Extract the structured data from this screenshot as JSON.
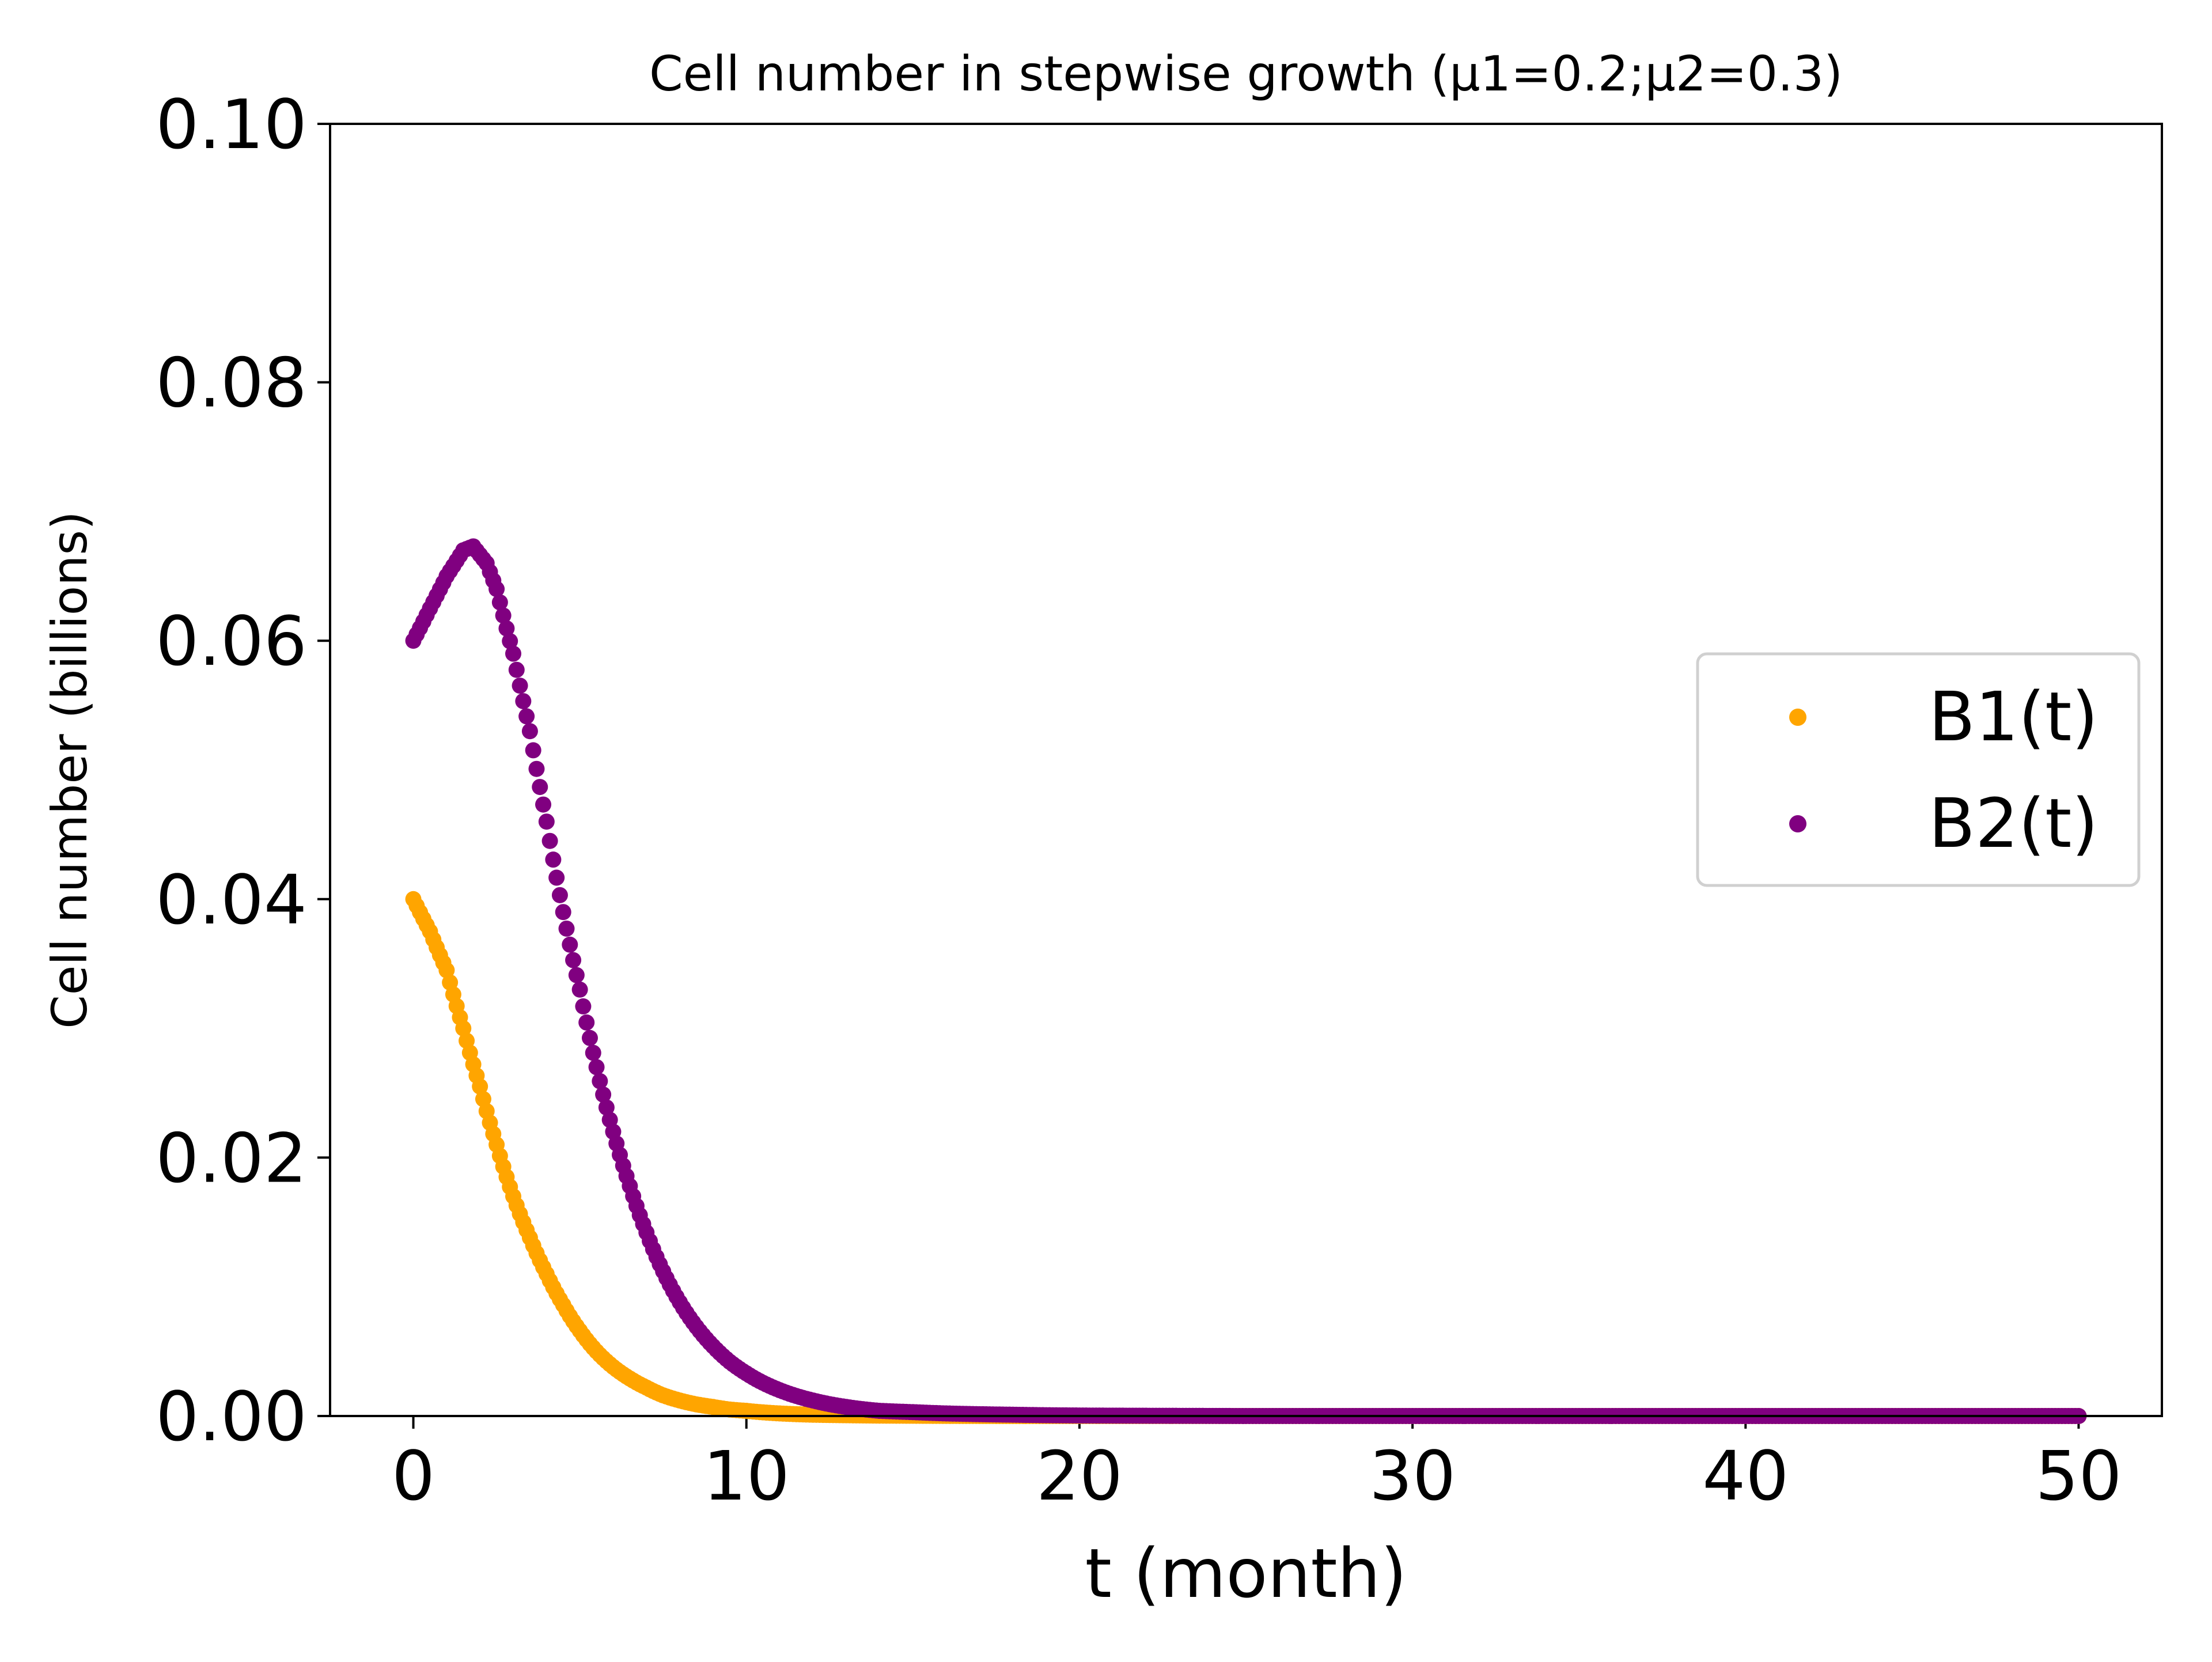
{
  "chart_data": {
    "type": "scatter",
    "title": "Cell number in stepwise growth (μ1=0.2;μ2=0.3)",
    "xlabel": "t (month)",
    "ylabel": "Cell number (billions)",
    "xlim": [
      -2.5,
      52.5
    ],
    "ylim": [
      0.0,
      0.1
    ],
    "xticks": [
      0,
      10,
      20,
      30,
      40,
      50
    ],
    "xtick_labels": [
      "0",
      "10",
      "20",
      "30",
      "40",
      "50"
    ],
    "yticks": [
      0.0,
      0.02,
      0.04,
      0.06,
      0.08,
      0.1
    ],
    "ytick_labels": [
      "0.00",
      "0.02",
      "0.04",
      "0.06",
      "0.08",
      "0.10"
    ],
    "grid": false,
    "legend_position": "center-right",
    "series": [
      {
        "name": "B1(t)",
        "color": "#FFA500",
        "x": [
          0,
          0.5,
          1,
          1.5,
          2,
          2.5,
          3,
          3.5,
          4,
          4.5,
          5,
          5.5,
          6,
          6.5,
          7,
          7.5,
          8,
          8.5,
          9,
          9.5,
          10,
          11,
          12,
          13,
          14,
          15,
          16,
          18,
          20,
          22,
          25,
          30,
          35,
          40,
          45,
          50
        ],
        "y": [
          0.04,
          0.0375,
          0.0345,
          0.03,
          0.0255,
          0.021,
          0.017,
          0.0138,
          0.011,
          0.0086,
          0.0066,
          0.005,
          0.0038,
          0.0029,
          0.0022,
          0.0016,
          0.0012,
          0.0009,
          0.0007,
          0.0005,
          0.0004,
          0.0002,
          0.0001,
          6e-05,
          3e-05,
          2e-05,
          1e-05,
          0,
          0,
          0,
          0,
          0,
          0,
          0,
          0,
          0
        ]
      },
      {
        "name": "B2(t)",
        "color": "#800080",
        "x": [
          0,
          0.5,
          1,
          1.5,
          1.8,
          2.2,
          2.5,
          3,
          3.5,
          4,
          4.5,
          5,
          5.5,
          6,
          6.5,
          7,
          7.5,
          8,
          8.5,
          9,
          9.5,
          10,
          11,
          12,
          13,
          14,
          15,
          16,
          18,
          20,
          22,
          25,
          30,
          35,
          40,
          45,
          50
        ],
        "y": [
          0.06,
          0.0625,
          0.065,
          0.067,
          0.0673,
          0.066,
          0.064,
          0.059,
          0.053,
          0.046,
          0.039,
          0.033,
          0.027,
          0.022,
          0.0178,
          0.0142,
          0.0112,
          0.0088,
          0.0069,
          0.0054,
          0.0042,
          0.0033,
          0.002,
          0.0012,
          0.0007,
          0.0004,
          0.0003,
          0.0002,
          0.0001,
          4e-05,
          2e-05,
          0,
          0,
          0,
          0,
          0,
          0
        ]
      }
    ]
  }
}
